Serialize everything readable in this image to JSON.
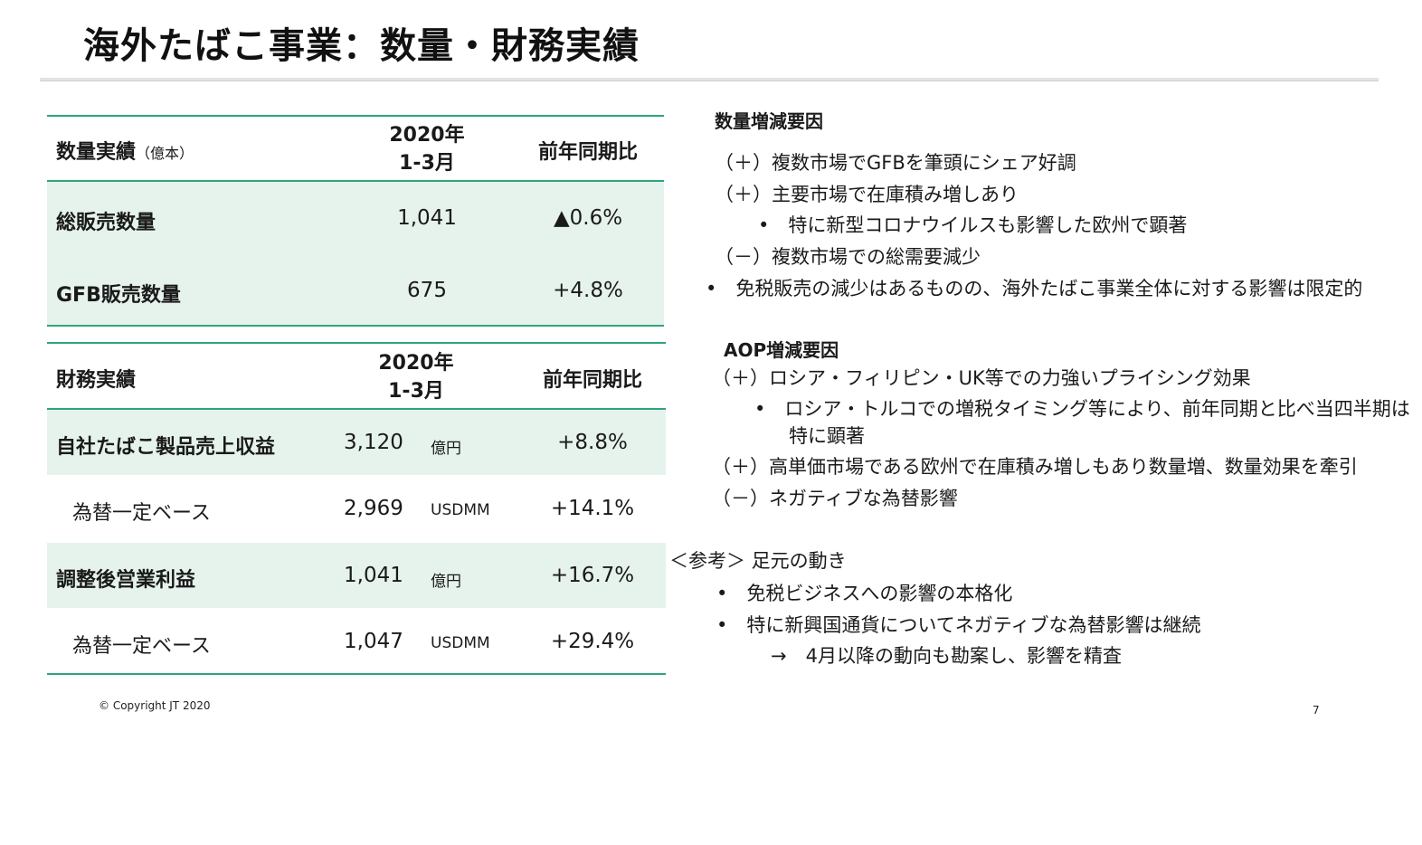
{
  "title": "海外たばこ事業：数量・財務実績",
  "volume_table": {
    "header": {
      "label": "数量実績",
      "unit": "（億本）",
      "period_line1": "2020年",
      "period_line2": "1-3月",
      "compare": "前年同期比"
    },
    "rows": [
      {
        "label": "総販売数量",
        "value": "1,041",
        "change": "▲0.6%"
      },
      {
        "label": "GFB販売数量",
        "value": "675",
        "change": "+4.8%"
      }
    ]
  },
  "finance_table": {
    "header": {
      "label": "財務実績",
      "period_line1": "2020年",
      "period_line2": "1-3月",
      "compare": "前年同期比"
    },
    "rows": [
      {
        "label": "自社たばこ製品売上収益",
        "value": "3,120",
        "unit": "億円",
        "change": "+8.8%"
      },
      {
        "label": "為替一定ベース",
        "value": "2,969",
        "unit": "USDMM",
        "change": "+14.1%"
      },
      {
        "label": "調整後営業利益",
        "value": "1,041",
        "unit": "億円",
        "change": "+16.7%"
      },
      {
        "label": "為替一定ベース",
        "value": "1,047",
        "unit": "USDMM",
        "change": "+29.4%"
      }
    ]
  },
  "volume_factors": {
    "heading": "数量増減要因",
    "lines": [
      "（＋）複数市場でGFBを筆頭にシェア好調",
      "（＋）主要市場で在庫積み増しあり",
      "•　特に新型コロナウイルスも影響した欧州で顕著",
      "（－）複数市場での総需要減少",
      "•　免税販売の減少はあるものの、海外たばこ事業全体に対する影響は限定的"
    ]
  },
  "aop_factors": {
    "heading": "AOP増減要因",
    "lines": [
      "（＋）ロシア・フィリピン・UK等での力強いプライシング効果",
      "•　ロシア・トルコでの増税タイミング等により、前年同期と比べ当四半期は",
      "特に顕著",
      "（＋）高単価市場である欧州で在庫積み増しもあり数量増、数量効果を牽引",
      "（－）ネガティブな為替影響"
    ]
  },
  "reference": {
    "heading": "＜参考＞ 足元の動き",
    "lines": [
      "•　免税ビジネスへの影響の本格化",
      "•　特に新興国通貨についてネガティブな為替影響は継続",
      "→　4月以降の動向も勘案し、影響を精査"
    ]
  },
  "footer": {
    "copyright": "© Copyright JT 2020",
    "page": "7"
  },
  "colors": {
    "accent_line": "#2fa57a",
    "band": "#e6f3ec"
  }
}
